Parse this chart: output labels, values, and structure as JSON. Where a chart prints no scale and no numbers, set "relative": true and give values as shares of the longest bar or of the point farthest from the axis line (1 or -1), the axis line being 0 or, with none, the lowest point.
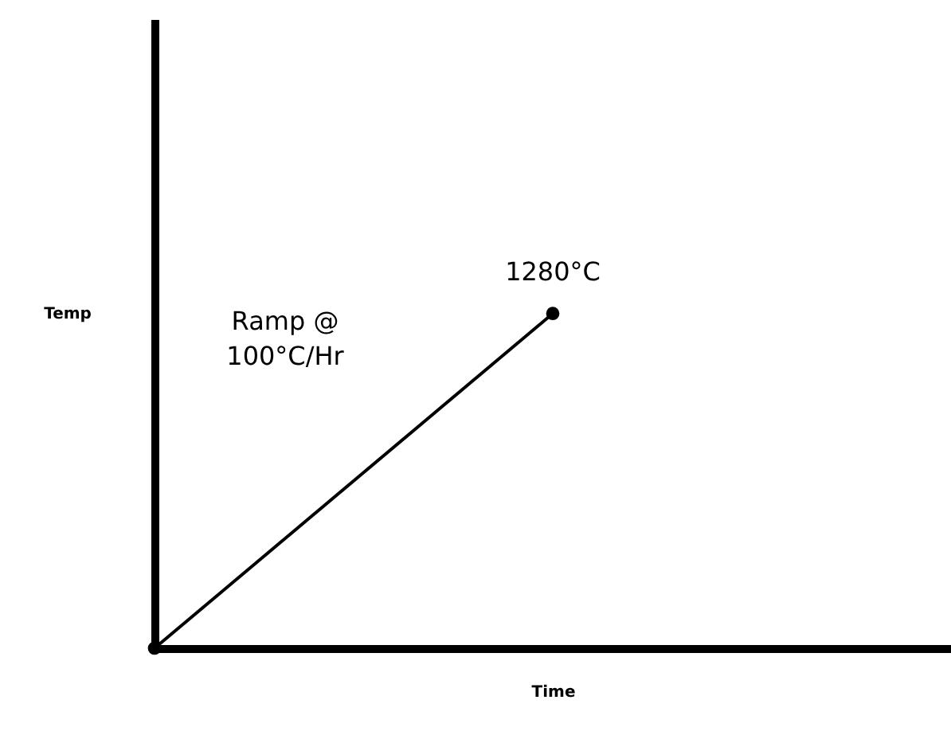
{
  "chart_data": {
    "type": "line",
    "relative": true,
    "xlabel": "Time",
    "ylabel": "Temp",
    "categories": [
      null,
      null,
      null
    ],
    "series": [
      {
        "color": "#000000",
        "values": [
          0,
          1,
          null
        ]
      }
    ],
    "marker": "circle",
    "line_style": "solid",
    "tick_labels": false,
    "grid": false,
    "annotations": [
      {
        "text": "1280°C",
        "y": 1
      },
      "Ramp @\n100°C/Hr"
    ]
  }
}
